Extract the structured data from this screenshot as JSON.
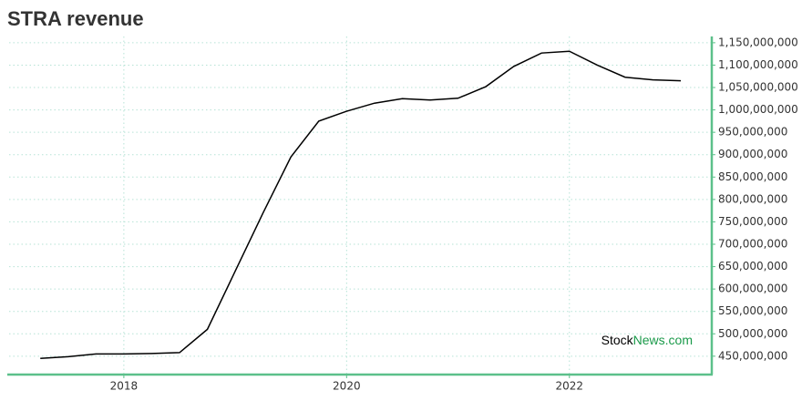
{
  "chart_data": {
    "type": "line",
    "title": "STRA revenue",
    "watermark": [
      "Stock",
      "News.com"
    ],
    "x": [
      2017.25,
      2017.5,
      2017.75,
      2018.0,
      2018.25,
      2018.5,
      2018.75,
      2019.0,
      2019.25,
      2019.5,
      2019.75,
      2020.0,
      2020.25,
      2020.5,
      2020.75,
      2021.0,
      2021.25,
      2021.5,
      2021.75,
      2022.0,
      2022.25,
      2022.5,
      2022.75,
      2023.0
    ],
    "series": [
      {
        "color": "#000000",
        "values": [
          445000000,
          449000000,
          455000000,
          455000000,
          456000000,
          458000000,
          510000000,
          640000000,
          770000000,
          895000000,
          975000000,
          997000000,
          1015000000,
          1025000000,
          1022000000,
          1026000000,
          1052000000,
          1097000000,
          1127000000,
          1131000000,
          1100000000,
          1073000000,
          1067000000,
          1065000000
        ]
      }
    ],
    "xlim": [
      2016.97,
      2023.27
    ],
    "xticks": [
      2018,
      2020,
      2022
    ],
    "ylim": [
      411000000,
      1164000000
    ],
    "yticks": [
      {
        "value": 450000000,
        "label": "450,000,000"
      },
      {
        "value": 500000000,
        "label": "500,000,000"
      },
      {
        "value": 550000000,
        "label": "550,000,000"
      },
      {
        "value": 600000000,
        "label": "600,000,000"
      },
      {
        "value": 650000000,
        "label": "650,000,000"
      },
      {
        "value": 700000000,
        "label": "700,000,000"
      },
      {
        "value": 750000000,
        "label": "750,000,000"
      },
      {
        "value": 800000000,
        "label": "800,000,000"
      },
      {
        "value": 850000000,
        "label": "850,000,000"
      },
      {
        "value": 900000000,
        "label": "900,000,000"
      },
      {
        "value": 950000000,
        "label": "950,000,000"
      },
      {
        "value": 1000000000,
        "label": "1,000,000,000"
      },
      {
        "value": 1050000000,
        "label": "1,050,000,000"
      },
      {
        "value": 1100000000,
        "label": "1,100,000,000"
      },
      {
        "value": 1150000000,
        "label": "1,150,000,000"
      }
    ],
    "grid": true,
    "axis_color": "#5cc08a",
    "title_color": "#5cc08a"
  }
}
